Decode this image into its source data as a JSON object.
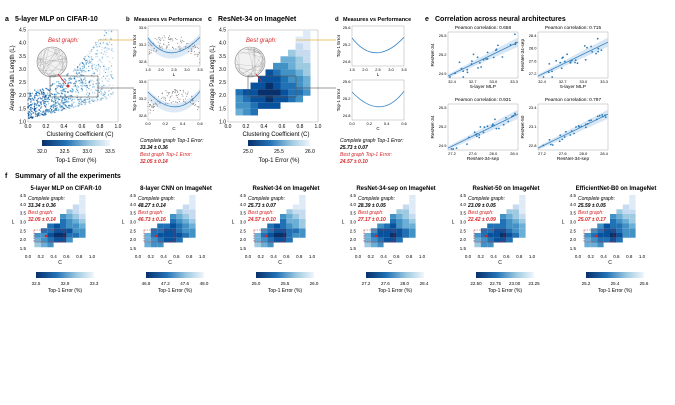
{
  "colors": {
    "dark": "#08306b",
    "mid": "#2171b5",
    "light": "#9ecae1",
    "pale": "#deebf7",
    "red": "#d62728",
    "fit": "#3a87c6",
    "band": "#c6dbef",
    "gold": "#e2b347"
  },
  "top": {
    "a": {
      "letter": "a",
      "title": "5-layer MLP on CIFAR-10",
      "best": "Best graph:",
      "xlabel": "Clustering Coefficient (C)",
      "ylabel": "Average Path Length (L)",
      "xticks": [
        "0.0",
        "0.2",
        "0.4",
        "0.6",
        "0.8",
        "1.0"
      ],
      "yticks": [
        "1.0",
        "1.5",
        "2.0",
        "2.5",
        "3.0",
        "3.5",
        "4.0",
        "4.5"
      ],
      "cbar_ticks": [
        "32.0",
        "32.5",
        "33.0",
        "33.5"
      ],
      "cbar_label": "Top-1 Error (%)"
    },
    "b": {
      "letter": "b",
      "title": "Measures vs Performance",
      "yl1": "Top-1 Error",
      "yl2": "Top-1 Error",
      "xt1": [
        "1.5",
        "2.0",
        "2.5",
        "3.0",
        "3.5"
      ],
      "xl1": "L",
      "xt2": [
        "0.0",
        "0.2",
        "0.4",
        "0.6"
      ],
      "xl2": "C",
      "yt1": [
        "33.6",
        "33.2",
        "32.8"
      ],
      "yt2": [
        "33.6",
        "33.2",
        "32.8"
      ],
      "note_line1": "Complete graph Top-1 Error:",
      "note_line2": "33.34 ± 0.36",
      "note_line3": "Best graph Top-1 Error:",
      "note_line4": "32.05 ± 0.14"
    },
    "c": {
      "letter": "c",
      "title": "ResNet-34 on ImageNet",
      "best": "Best graph:",
      "xlabel": "Clustering Coefficient (C)",
      "ylabel": "Average Path Length (L)",
      "xticks": [
        "0.0",
        "0.2",
        "0.4",
        "0.6",
        "0.8",
        "1.0"
      ],
      "yticks": [
        "1.0",
        "1.5",
        "2.0",
        "2.5",
        "3.0",
        "3.5",
        "4.0",
        "4.5"
      ],
      "cbar_ticks": [
        "25.0",
        "25.5",
        "26.0"
      ],
      "cbar_label": "Top-1 Error (%)",
      "note_line1": "Complete graph Top-1 Error:",
      "note_line2": "25.73 ± 0.07",
      "note_line3": "Best graph Top-1 Error:",
      "note_line4": "24.57 ± 0.10"
    },
    "d": {
      "letter": "d",
      "title": "Measures vs Performance",
      "yl1": "Top-1 Error",
      "yl2": "Top-1 Error",
      "xl1": "L",
      "xl2": "C",
      "xt1": [
        "1.5",
        "2.0",
        "2.5",
        "3.0",
        "3.5"
      ],
      "xt2": [
        "0.0",
        "0.2",
        "0.4",
        "0.6"
      ],
      "yt1": [
        "25.6",
        "25.2",
        "24.8"
      ],
      "yt2": [
        "25.6",
        "25.2",
        "24.8"
      ]
    },
    "e": {
      "letter": "e",
      "title": "Correlation across neural architectures",
      "panels": [
        {
          "p": "Pearson correlation: 0.658",
          "xl": "5-layer MLP",
          "yl": "ResNet-34",
          "xt": [
            "32.4",
            "32.7",
            "33.0",
            "33.3"
          ],
          "yt": [
            "24.9",
            "25.2",
            "25.5"
          ]
        },
        {
          "p": "Pearson correlation: 0.715",
          "xl": "5-layer MLP",
          "yl": "ResNet-34-sep",
          "xt": [
            "32.4",
            "32.7",
            "33.0",
            "33.3"
          ],
          "yt": [
            "27.2",
            "27.6",
            "28.0",
            "28.4"
          ]
        },
        {
          "p": "Pearson correlation: 0.931",
          "xl": "ResNet-34-sep",
          "yl": "ResNet-34",
          "xt": [
            "27.2",
            "27.6",
            "28.0",
            "28.4"
          ],
          "yt": [
            "24.9",
            "25.2",
            "25.5"
          ]
        },
        {
          "p": "Pearson correlation: 0.797",
          "xl": "ResNet-34-sep",
          "yl": "ResNet-50",
          "xt": [
            "27.2",
            "27.6",
            "28.0",
            "28.4"
          ],
          "yt": [
            "22.8",
            "23.1",
            "23.4"
          ]
        }
      ]
    }
  },
  "bottom": {
    "letter": "f",
    "title": "Summary of all the experiments",
    "panels": [
      {
        "title": "5-layer MLP on CIFAR-10",
        "cg": "Complete graph:",
        "cgv": "33.34 ± 0.36",
        "bg": "Best graph:",
        "bgv": "32.05 ± 0.14",
        "cb": [
          "32.5",
          "32.9",
          "33.3"
        ]
      },
      {
        "title": "8-layer CNN on ImageNet",
        "cg": "Complete graph:",
        "cgv": "48.27 ± 0.14",
        "bg": "Best graph:",
        "bgv": "46.73 ± 0.16",
        "cb": [
          "46.8",
          "47.2",
          "47.6",
          "48.0"
        ]
      },
      {
        "title": "ResNet-34 on ImageNet",
        "cg": "Complete graph:",
        "cgv": "25.73 ± 0.07",
        "bg": "Best graph:",
        "bgv": "24.57 ± 0.10",
        "cb": [
          "25.0",
          "25.5",
          "26.0"
        ]
      },
      {
        "title": "ResNet-34-sep on ImageNet",
        "cg": "Complete graph:",
        "cgv": "28.39 ± 0.05",
        "bg": "Best graph:",
        "bgv": "27.17 ± 0.10",
        "cb": [
          "27.2",
          "27.6",
          "28.0",
          "28.4"
        ]
      },
      {
        "title": "ResNet-50 on ImageNet",
        "cg": "Complete graph:",
        "cgv": "23.09 ± 0.05",
        "bg": "Best graph:",
        "bgv": "22.42 ± 0.09",
        "cb": [
          "22.50",
          "22.75",
          "23.00",
          "23.25"
        ]
      },
      {
        "title": "EfficientNet-B0 on ImageNet",
        "cg": "Complete graph:",
        "cgv": "25.59 ± 0.05",
        "bg": "Best graph:",
        "bgv": "25.07 ± 0.17",
        "cb": [
          "25.2",
          "25.4",
          "25.6"
        ]
      }
    ],
    "yticks": [
      "4.5",
      "4.0",
      "3.5",
      "3.0",
      "2.5",
      "2.0",
      "1.5"
    ],
    "ylabel": "L",
    "xticks": [
      "0.0",
      "0.2",
      "0.4",
      "0.6",
      "0.8",
      "1.0"
    ],
    "xlabel": "C",
    "cbar_label": "Top-1 Error (%)"
  },
  "chart_data": [
    {
      "type": "scatter",
      "panel": "a",
      "title": "5-layer MLP on CIFAR-10",
      "xlabel": "Clustering Coefficient (C)",
      "ylabel": "Average Path Length (L)",
      "xlim": [
        0,
        1
      ],
      "ylim": [
        1,
        4.5
      ]
    },
    {
      "type": "heatmap",
      "panel": "c",
      "title": "ResNet-34 on ImageNet",
      "xlabel": "Clustering Coefficient (C)",
      "ylabel": "Average Path Length (L)",
      "xlim": [
        0,
        1
      ],
      "ylim": [
        1,
        4.5
      ]
    },
    {
      "type": "scatter",
      "panel": "e",
      "title": "Correlation across neural architectures",
      "pearson": [
        0.658,
        0.715,
        0.931,
        0.797
      ]
    },
    {
      "type": "heatmap",
      "panel": "f",
      "title": "Summary of all the experiments",
      "complete": [
        33.34,
        48.27,
        25.73,
        28.39,
        23.09,
        25.59
      ],
      "best": [
        32.05,
        46.73,
        24.57,
        27.17,
        22.42,
        25.07
      ]
    }
  ]
}
